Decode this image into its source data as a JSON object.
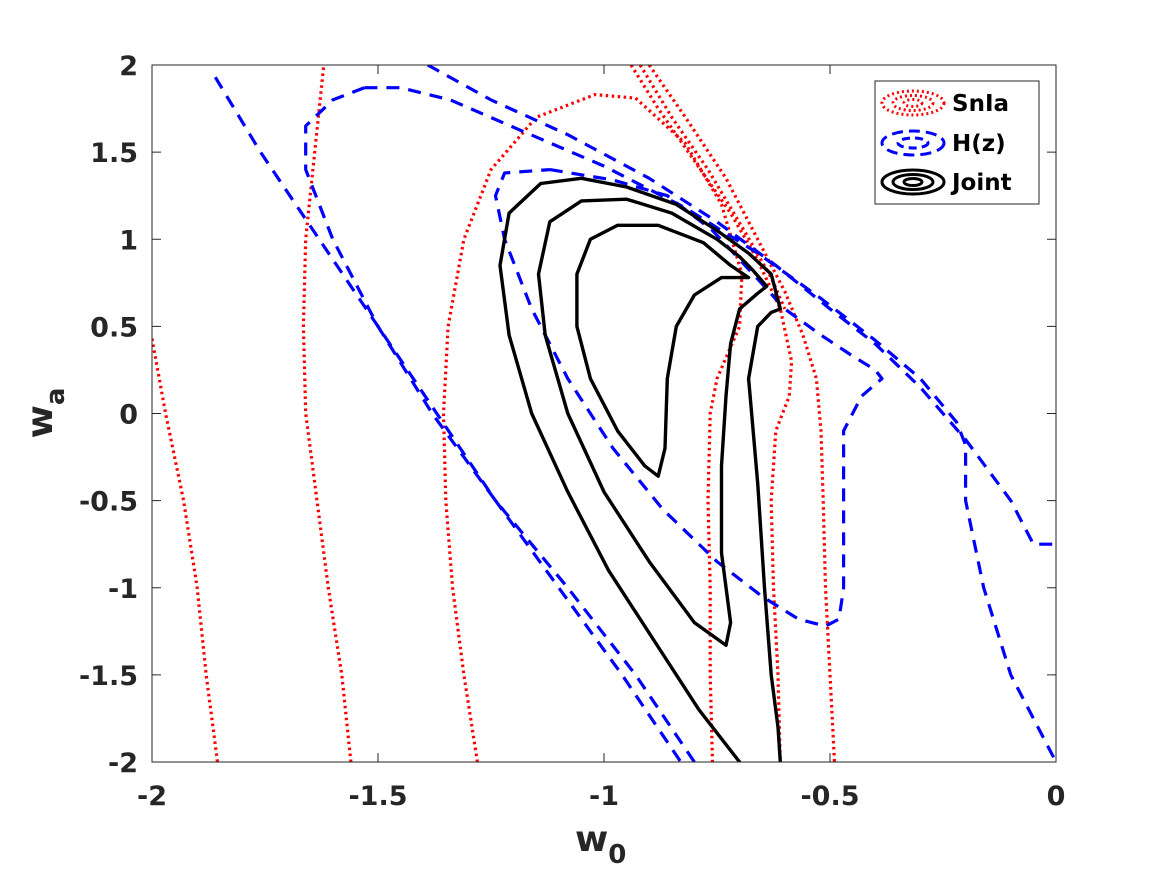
{
  "chart_data": {
    "type": "line",
    "subtype": "confidence-contours",
    "title": "",
    "xlabel": "w",
    "xlabel_sub": "0",
    "ylabel": "w",
    "ylabel_sub": "a",
    "xlim": [
      -2,
      0
    ],
    "ylim": [
      -2,
      2
    ],
    "xticks": [
      -2,
      -1.5,
      -1,
      -0.5,
      0
    ],
    "xtick_labels": [
      "-2",
      "-1.5",
      "-1",
      "-0.5",
      "0"
    ],
    "yticks": [
      -2,
      -1.5,
      -1,
      -0.5,
      0,
      0.5,
      1,
      1.5,
      2
    ],
    "ytick_labels": [
      "-2",
      "-1.5",
      "-1",
      "-0.5",
      "0",
      "0.5",
      "1",
      "1.5",
      "2"
    ],
    "grid": false,
    "legend_position": "top-right",
    "series": [
      {
        "name": "SnIa",
        "color": "#ff0000",
        "style": "dotted",
        "contours": [
          [
            [
              -2.0,
              0.43
            ],
            [
              -1.97,
              0.0
            ],
            [
              -1.93,
              -0.5
            ],
            [
              -1.9,
              -1.0
            ],
            [
              -1.88,
              -1.5
            ],
            [
              -1.855,
              -2.0
            ]
          ],
          [
            [
              -1.56,
              -2.0
            ],
            [
              -1.58,
              -1.5
            ],
            [
              -1.61,
              -1.0
            ],
            [
              -1.635,
              -0.5
            ],
            [
              -1.66,
              0.0
            ],
            [
              -1.665,
              0.5
            ],
            [
              -1.66,
              1.0
            ],
            [
              -1.64,
              1.5
            ],
            [
              -1.62,
              2.0
            ]
          ],
          [
            [
              -1.28,
              -2.0
            ],
            [
              -1.31,
              -1.5
            ],
            [
              -1.335,
              -1.0
            ],
            [
              -1.35,
              -0.5
            ],
            [
              -1.355,
              0.0
            ],
            [
              -1.345,
              0.5
            ],
            [
              -1.31,
              1.0
            ],
            [
              -1.25,
              1.4
            ],
            [
              -1.15,
              1.7
            ],
            [
              -1.02,
              1.83
            ],
            [
              -0.93,
              1.81
            ],
            [
              -0.82,
              1.55
            ],
            [
              -0.74,
              1.2
            ],
            [
              -0.695,
              0.8
            ],
            [
              -0.7,
              0.5
            ],
            [
              -0.75,
              0.2
            ],
            [
              -0.765,
              0.0
            ],
            [
              -0.77,
              -0.5
            ],
            [
              -0.765,
              -1.0
            ],
            [
              -0.765,
              -1.5
            ],
            [
              -0.76,
              -2.0
            ]
          ],
          [
            [
              -0.94,
              2.0
            ],
            [
              -0.88,
              1.75
            ],
            [
              -0.8,
              1.45
            ],
            [
              -0.72,
              1.15
            ],
            [
              -0.66,
              0.88
            ],
            [
              -0.61,
              0.6
            ],
            [
              -0.585,
              0.3
            ],
            [
              -0.59,
              0.1
            ],
            [
              -0.62,
              -0.1
            ],
            [
              -0.63,
              -0.5
            ],
            [
              -0.625,
              -1.0
            ],
            [
              -0.615,
              -1.5
            ],
            [
              -0.61,
              -2.0
            ]
          ],
          [
            [
              -0.92,
              2.0
            ],
            [
              -0.85,
              1.7
            ],
            [
              -0.77,
              1.4
            ],
            [
              -0.69,
              1.05
            ],
            [
              -0.63,
              0.78
            ],
            [
              -0.6,
              0.6
            ]
          ],
          [
            [
              -0.9,
              2.0
            ],
            [
              -0.82,
              1.7
            ],
            [
              -0.73,
              1.35
            ],
            [
              -0.66,
              1.0
            ],
            [
              -0.6,
              0.7
            ],
            [
              -0.56,
              0.45
            ],
            [
              -0.53,
              0.2
            ],
            [
              -0.52,
              -0.1
            ],
            [
              -0.515,
              -0.5
            ],
            [
              -0.51,
              -1.0
            ],
            [
              -0.5,
              -1.5
            ],
            [
              -0.49,
              -2.0
            ]
          ]
        ]
      },
      {
        "name": "H(z)",
        "color": "#0000ff",
        "style": "dashed",
        "contours": [
          [
            [
              -1.86,
              1.93
            ],
            [
              -1.76,
              1.5
            ],
            [
              -1.63,
              1.0
            ],
            [
              -1.5,
              0.5
            ],
            [
              -1.37,
              0.0
            ],
            [
              -1.24,
              -0.5
            ],
            [
              -1.1,
              -1.0
            ],
            [
              -0.96,
              -1.5
            ],
            [
              -0.83,
              -2.0
            ]
          ],
          [
            [
              -1.39,
              2.0
            ],
            [
              -1.25,
              1.8
            ],
            [
              -1.08,
              1.6
            ],
            [
              -0.9,
              1.35
            ],
            [
              -0.75,
              1.1
            ],
            [
              -0.62,
              0.85
            ],
            [
              -0.5,
              0.6
            ],
            [
              -0.4,
              0.4
            ],
            [
              -0.3,
              0.15
            ],
            [
              -0.2,
              -0.15
            ],
            [
              -0.1,
              -0.5
            ],
            [
              -0.05,
              -0.75
            ],
            [
              0.0,
              -0.75
            ]
          ],
          [
            [
              -1.12,
              1.4
            ],
            [
              -1.05,
              1.37
            ],
            [
              -0.98,
              1.34
            ],
            [
              -0.86,
              1.25
            ],
            [
              -0.76,
              1.05
            ],
            [
              -0.67,
              0.8
            ],
            [
              -0.6,
              0.6
            ],
            [
              -0.52,
              0.45
            ],
            [
              -0.45,
              0.33
            ],
            [
              -0.4,
              0.25
            ],
            [
              -0.385,
              0.2
            ],
            [
              -0.43,
              0.1
            ],
            [
              -0.47,
              -0.1
            ],
            [
              -0.47,
              -0.5
            ],
            [
              -0.47,
              -1.0
            ],
            [
              -0.48,
              -1.18
            ],
            [
              -0.51,
              -1.22
            ],
            [
              -0.57,
              -1.18
            ],
            [
              -0.65,
              -1.05
            ],
            [
              -0.75,
              -0.85
            ],
            [
              -0.87,
              -0.55
            ],
            [
              -0.98,
              -0.2
            ],
            [
              -1.08,
              0.2
            ],
            [
              -1.16,
              0.6
            ],
            [
              -1.22,
              1.0
            ],
            [
              -1.24,
              1.25
            ],
            [
              -1.22,
              1.38
            ],
            [
              -1.12,
              1.4
            ]
          ],
          [
            [
              -1.53,
              1.87
            ],
            [
              -1.45,
              1.87
            ],
            [
              -1.34,
              1.8
            ],
            [
              -1.18,
              1.62
            ],
            [
              -1.0,
              1.42
            ],
            [
              -0.82,
              1.18
            ],
            [
              -0.66,
              0.92
            ],
            [
              -0.52,
              0.66
            ],
            [
              -0.4,
              0.42
            ],
            [
              -0.3,
              0.2
            ],
            [
              -0.22,
              -0.05
            ],
            [
              -0.2,
              -0.18
            ],
            [
              -0.2,
              -0.5
            ],
            [
              -0.16,
              -1.0
            ],
            [
              -0.1,
              -1.5
            ],
            [
              -0.04,
              -1.8
            ],
            [
              0.0,
              -2.0
            ]
          ],
          [
            [
              -0.8,
              -2.0
            ],
            [
              -0.93,
              -1.5
            ],
            [
              -1.08,
              -1.0
            ],
            [
              -1.24,
              -0.5
            ],
            [
              -1.38,
              0.0
            ],
            [
              -1.5,
              0.5
            ],
            [
              -1.6,
              1.0
            ],
            [
              -1.66,
              1.4
            ],
            [
              -1.66,
              1.65
            ],
            [
              -1.6,
              1.8
            ],
            [
              -1.53,
              1.87
            ]
          ]
        ]
      },
      {
        "name": "Joint",
        "color": "#000000",
        "style": "solid",
        "contours": [
          [
            [
              -0.88,
              -0.36
            ],
            [
              -0.91,
              -0.3
            ],
            [
              -0.97,
              -0.1
            ],
            [
              -1.03,
              0.2
            ],
            [
              -1.06,
              0.5
            ],
            [
              -1.06,
              0.8
            ],
            [
              -1.03,
              1.0
            ],
            [
              -0.97,
              1.08
            ],
            [
              -0.88,
              1.08
            ],
            [
              -0.78,
              0.98
            ],
            [
              -0.72,
              0.85
            ],
            [
              -0.68,
              0.78
            ],
            [
              -0.74,
              0.78
            ],
            [
              -0.8,
              0.68
            ],
            [
              -0.84,
              0.5
            ],
            [
              -0.86,
              0.2
            ],
            [
              -0.865,
              -0.2
            ],
            [
              -0.88,
              -0.36
            ]
          ],
          [
            [
              -0.73,
              -1.33
            ],
            [
              -0.8,
              -1.2
            ],
            [
              -0.9,
              -0.85
            ],
            [
              -1.0,
              -0.45
            ],
            [
              -1.08,
              0.0
            ],
            [
              -1.13,
              0.45
            ],
            [
              -1.145,
              0.8
            ],
            [
              -1.12,
              1.1
            ],
            [
              -1.05,
              1.22
            ],
            [
              -0.95,
              1.23
            ],
            [
              -0.85,
              1.15
            ],
            [
              -0.75,
              1.0
            ],
            [
              -0.7,
              0.9
            ],
            [
              -0.67,
              0.82
            ],
            [
              -0.64,
              0.73
            ],
            [
              -0.66,
              0.69
            ],
            [
              -0.7,
              0.6
            ],
            [
              -0.72,
              0.4
            ],
            [
              -0.73,
              0.1
            ],
            [
              -0.74,
              -0.3
            ],
            [
              -0.74,
              -0.8
            ],
            [
              -0.72,
              -1.2
            ],
            [
              -0.73,
              -1.33
            ]
          ],
          [
            [
              -0.7,
              -2.0
            ],
            [
              -0.79,
              -1.7
            ],
            [
              -0.89,
              -1.3
            ],
            [
              -0.99,
              -0.9
            ],
            [
              -1.08,
              -0.45
            ],
            [
              -1.16,
              0.0
            ],
            [
              -1.21,
              0.45
            ],
            [
              -1.23,
              0.85
            ],
            [
              -1.21,
              1.15
            ],
            [
              -1.14,
              1.32
            ],
            [
              -1.05,
              1.35
            ],
            [
              -0.95,
              1.3
            ],
            [
              -0.84,
              1.2
            ],
            [
              -0.75,
              1.05
            ],
            [
              -0.68,
              0.92
            ],
            [
              -0.63,
              0.8
            ],
            [
              -0.61,
              0.6
            ],
            [
              -0.63,
              0.58
            ],
            [
              -0.66,
              0.5
            ],
            [
              -0.68,
              0.2
            ],
            [
              -0.66,
              -0.4
            ],
            [
              -0.645,
              -1.0
            ],
            [
              -0.63,
              -1.5
            ],
            [
              -0.615,
              -1.8
            ],
            [
              -0.61,
              -2.0
            ]
          ]
        ]
      }
    ]
  }
}
